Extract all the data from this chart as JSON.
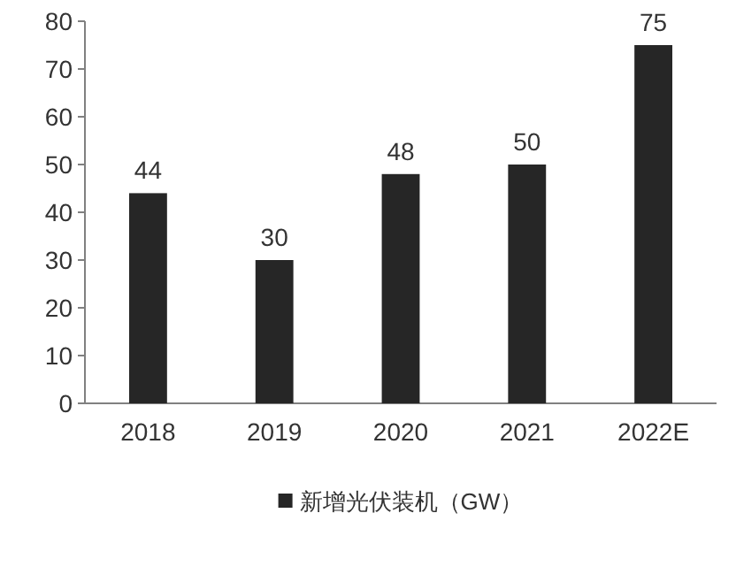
{
  "chart_data": {
    "type": "bar",
    "categories": [
      "2018",
      "2019",
      "2020",
      "2021",
      "2022E"
    ],
    "series": [
      {
        "name": "新增光伏装机（GW）",
        "color": "#262626",
        "values": [
          44,
          30,
          48,
          50,
          75
        ]
      }
    ],
    "ylim": [
      0,
      80
    ],
    "yticks": [
      0,
      10,
      20,
      30,
      40,
      50,
      60,
      70,
      80
    ],
    "data_labels": true,
    "legend": "bottom"
  }
}
